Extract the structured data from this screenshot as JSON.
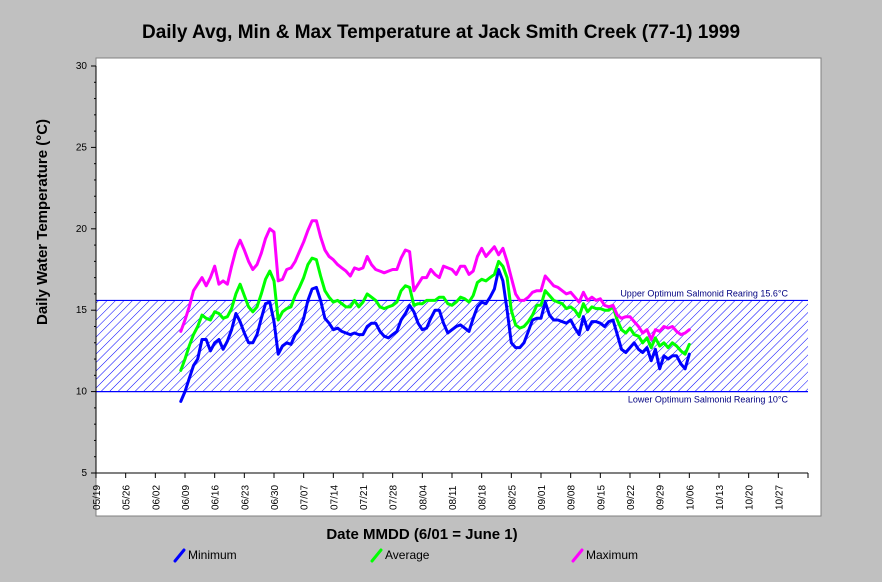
{
  "chart_data": {
    "type": "line",
    "title": "Daily Avg, Min & Max Temperature at Jack Smith Creek (77-1) 1999",
    "xlabel": "Date MMDD (6/01 = June 1)",
    "ylabel": "Daily Water Temperature (°C)",
    "ylim": [
      5,
      30
    ],
    "yticks": [
      5,
      10,
      15,
      20,
      25,
      30
    ],
    "xticks": [
      "05/19",
      "05/26",
      "06/02",
      "06/09",
      "06/16",
      "06/23",
      "06/30",
      "07/07",
      "07/14",
      "07/21",
      "07/28",
      "08/04",
      "08/11",
      "08/18",
      "08/25",
      "09/01",
      "09/08",
      "09/15",
      "09/22",
      "09/29",
      "10/06",
      "10/13",
      "10/20",
      "10/27"
    ],
    "x_start": "06/08",
    "x_step_days": 1,
    "grid": false,
    "legend_position": "bottom",
    "reference_bands": [
      {
        "from": 10,
        "to": 15.6,
        "upper_label": "Upper Optimum Salmonid Rearing 15.6°C",
        "lower_label": "Lower Optimum Salmonid Rearing 10°C",
        "color": "#0000ff"
      }
    ],
    "series": [
      {
        "name": "Minimum",
        "color": "#0000ff",
        "values": [
          9.4,
          10.0,
          10.8,
          11.6,
          12.0,
          13.2,
          13.2,
          12.5,
          13.0,
          13.2,
          12.6,
          13.1,
          13.8,
          14.8,
          14.3,
          13.6,
          13.0,
          13.0,
          13.5,
          14.5,
          15.4,
          15.5,
          14.3,
          12.3,
          12.8,
          13.0,
          12.9,
          13.5,
          13.8,
          14.5,
          15.6,
          16.3,
          16.4,
          15.6,
          14.5,
          14.2,
          13.8,
          13.9,
          13.7,
          13.6,
          13.5,
          13.6,
          13.5,
          13.5,
          14.0,
          14.2,
          14.2,
          13.7,
          13.4,
          13.3,
          13.5,
          13.7,
          14.4,
          14.8,
          15.3,
          14.9,
          14.2,
          13.8,
          13.9,
          14.5,
          15.0,
          15.0,
          14.2,
          13.6,
          13.8,
          14.0,
          14.1,
          13.9,
          13.7,
          14.5,
          15.2,
          15.5,
          15.4,
          15.8,
          16.3,
          17.5,
          16.8,
          15.0,
          13.0,
          12.7,
          12.7,
          13.0,
          13.7,
          14.4,
          14.5,
          14.5,
          15.5,
          14.7,
          14.4,
          14.4,
          14.3,
          14.2,
          14.4,
          13.9,
          13.5,
          14.6,
          13.8,
          14.3,
          14.3,
          14.2,
          14.0,
          14.3,
          14.4,
          13.5,
          12.6,
          12.4,
          12.7,
          13.0,
          12.6,
          12.4,
          12.7,
          11.9,
          12.6,
          11.4,
          12.2,
          12.0,
          12.2,
          12.2,
          11.7,
          11.4,
          12.3
        ]
      },
      {
        "name": "Average",
        "color": "#00ff00",
        "values": [
          11.3,
          12.0,
          12.8,
          13.5,
          14.0,
          14.7,
          14.5,
          14.4,
          14.9,
          14.8,
          14.5,
          14.6,
          15.1,
          16.0,
          16.6,
          15.9,
          15.2,
          14.9,
          15.2,
          16.0,
          16.9,
          17.4,
          16.8,
          14.4,
          14.9,
          15.1,
          15.2,
          15.9,
          16.4,
          17.0,
          17.8,
          18.2,
          18.1,
          17.1,
          16.2,
          15.8,
          15.5,
          15.6,
          15.4,
          15.2,
          15.2,
          15.6,
          15.2,
          15.5,
          16.0,
          15.8,
          15.6,
          15.2,
          15.1,
          15.2,
          15.3,
          15.5,
          16.2,
          16.5,
          16.4,
          15.3,
          15.4,
          15.4,
          15.6,
          15.6,
          15.6,
          15.8,
          15.8,
          15.4,
          15.3,
          15.5,
          15.8,
          15.7,
          15.5,
          15.9,
          16.7,
          16.9,
          16.8,
          17.0,
          17.2,
          18.0,
          17.7,
          17.0,
          15.0,
          14.1,
          13.9,
          14.0,
          14.3,
          14.7,
          15.3,
          15.3,
          16.2,
          15.9,
          15.6,
          15.5,
          15.4,
          15.1,
          15.2,
          15.0,
          14.6,
          15.4,
          14.9,
          15.2,
          15.1,
          15.1,
          15.0,
          15.0,
          15.2,
          14.4,
          13.8,
          13.6,
          13.9,
          13.5,
          13.4,
          13.0,
          13.3,
          12.7,
          13.3,
          12.8,
          13.0,
          12.7,
          13.0,
          12.8,
          12.5,
          12.3,
          12.9
        ]
      },
      {
        "name": "Maximum",
        "color": "#ff00ff",
        "values": [
          13.7,
          14.4,
          15.2,
          16.2,
          16.6,
          17.0,
          16.5,
          17.0,
          17.7,
          16.6,
          16.8,
          16.6,
          17.7,
          18.7,
          19.3,
          18.7,
          18.0,
          17.5,
          17.8,
          18.5,
          19.4,
          20.0,
          19.8,
          16.8,
          16.9,
          17.5,
          17.6,
          18.0,
          18.6,
          19.2,
          19.9,
          20.5,
          20.5,
          19.5,
          18.7,
          18.3,
          18.1,
          17.8,
          17.6,
          17.4,
          17.1,
          17.6,
          17.5,
          17.6,
          18.3,
          17.8,
          17.5,
          17.4,
          17.3,
          17.4,
          17.5,
          17.5,
          18.2,
          18.7,
          18.6,
          16.2,
          16.6,
          17.0,
          17.0,
          17.5,
          17.2,
          17.0,
          17.7,
          17.6,
          17.5,
          17.2,
          17.7,
          17.7,
          17.2,
          17.4,
          18.3,
          18.8,
          18.3,
          18.6,
          18.9,
          18.4,
          18.8,
          18.0,
          17.0,
          16.0,
          15.6,
          15.6,
          15.8,
          16.1,
          16.2,
          16.2,
          17.1,
          16.8,
          16.5,
          16.4,
          16.2,
          16.0,
          16.1,
          15.8,
          15.5,
          16.1,
          15.6,
          15.8,
          15.6,
          15.7,
          15.3,
          15.2,
          15.3,
          14.7,
          14.5,
          14.6,
          14.6,
          14.3,
          14.0,
          13.6,
          13.8,
          13.2,
          13.8,
          13.7,
          14.0,
          13.9,
          14.0,
          13.7,
          13.5,
          13.6,
          13.8
        ]
      }
    ]
  }
}
